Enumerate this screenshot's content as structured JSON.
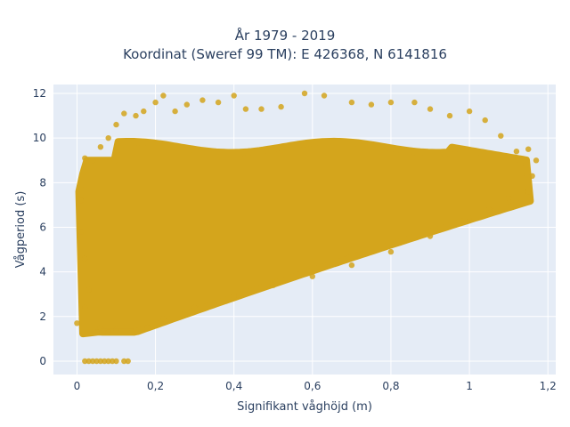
{
  "chart_data": {
    "type": "scatter",
    "title": "År 1979 - 2019",
    "subtitle": "Koordinat (Sweref 99 TM): E 426368, N 6141816",
    "xlabel": "Signifikant våghöjd (m)",
    "ylabel": "Vågperiod (s)",
    "xlim": [
      -0.06,
      1.22
    ],
    "ylim": [
      -0.6,
      12.4
    ],
    "x_ticks": [
      0,
      0.2,
      0.4,
      0.6,
      0.8,
      1,
      1.2
    ],
    "x_tick_labels": [
      "0",
      "0,2",
      "0,4",
      "0,6",
      "0,8",
      "1",
      "1,2"
    ],
    "y_ticks": [
      0,
      2,
      4,
      6,
      8,
      10,
      12
    ],
    "y_tick_labels": [
      "0",
      "2",
      "4",
      "6",
      "8",
      "10",
      "12"
    ],
    "grid": true,
    "legend": "none",
    "marker_color": "#d4a51c",
    "plot_bg": "#e5ecf6",
    "description_of_cloud": "dense band: lower edge rises from ~1.2 s at 0.05 m to ~7.5 s at 1.15 m; upper edge ~9-12 s",
    "series": [
      {
        "name": "",
        "points": [
          [
            0.02,
            0
          ],
          [
            0.03,
            0
          ],
          [
            0.04,
            0
          ],
          [
            0.05,
            0
          ],
          [
            0.06,
            0
          ],
          [
            0.07,
            0
          ],
          [
            0.08,
            0
          ],
          [
            0.09,
            0
          ],
          [
            0.1,
            0
          ],
          [
            0.12,
            0
          ],
          [
            0.13,
            0
          ],
          [
            0.0,
            1.7
          ],
          [
            0.02,
            2.4
          ],
          [
            0.03,
            3.2
          ],
          [
            0.05,
            1.3
          ],
          [
            0.06,
            1.5
          ],
          [
            0.08,
            1.3
          ],
          [
            0.1,
            1.4
          ],
          [
            0.14,
            1.3
          ],
          [
            0.18,
            1.5
          ],
          [
            0.22,
            1.9
          ],
          [
            0.3,
            2.4
          ],
          [
            0.35,
            2.6
          ],
          [
            0.4,
            2.9
          ],
          [
            0.5,
            3.4
          ],
          [
            0.6,
            3.8
          ],
          [
            0.7,
            4.3
          ],
          [
            0.8,
            4.9
          ],
          [
            0.9,
            5.6
          ],
          [
            1.0,
            6.3
          ],
          [
            1.05,
            6.8
          ],
          [
            1.1,
            7.3
          ],
          [
            1.15,
            7.6
          ],
          [
            1.16,
            8.3
          ],
          [
            1.17,
            9.0
          ],
          [
            1.15,
            9.5
          ],
          [
            1.12,
            9.4
          ],
          [
            1.08,
            10.1
          ],
          [
            1.04,
            10.8
          ],
          [
            1.0,
            11.2
          ],
          [
            0.95,
            11.0
          ],
          [
            0.9,
            11.3
          ],
          [
            0.86,
            11.6
          ],
          [
            0.8,
            11.6
          ],
          [
            0.75,
            11.5
          ],
          [
            0.7,
            11.6
          ],
          [
            0.63,
            11.9
          ],
          [
            0.58,
            12.0
          ],
          [
            0.52,
            11.4
          ],
          [
            0.47,
            11.3
          ],
          [
            0.43,
            11.3
          ],
          [
            0.4,
            11.9
          ],
          [
            0.36,
            11.6
          ],
          [
            0.32,
            11.7
          ],
          [
            0.28,
            11.5
          ],
          [
            0.25,
            11.2
          ],
          [
            0.22,
            11.9
          ],
          [
            0.2,
            11.6
          ],
          [
            0.17,
            11.2
          ],
          [
            0.15,
            11.0
          ],
          [
            0.12,
            11.1
          ],
          [
            0.1,
            10.6
          ],
          [
            0.08,
            10.0
          ],
          [
            0.06,
            9.6
          ],
          [
            0.04,
            9.0
          ],
          [
            0.02,
            9.1
          ],
          [
            0.01,
            7.2
          ],
          [
            0.01,
            5.8
          ],
          [
            0.02,
            4.6
          ]
        ]
      }
    ]
  }
}
